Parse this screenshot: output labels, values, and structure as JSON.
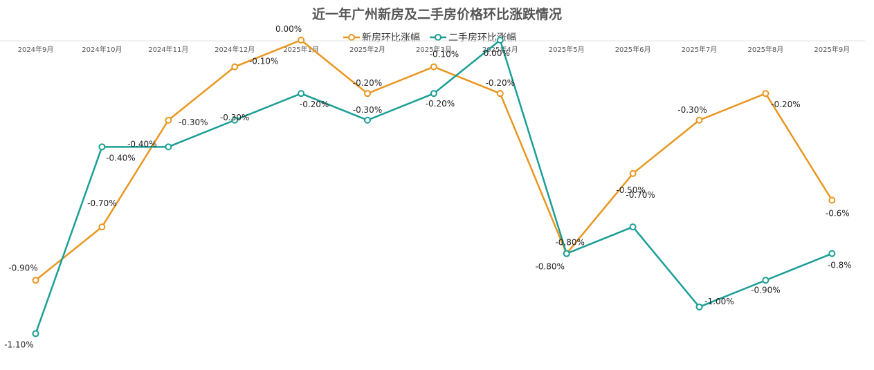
{
  "chart_data": {
    "type": "line",
    "title": "近一年广州新房及二手房价格环比涨跌情况",
    "xlabel": "",
    "ylabel": "",
    "categories": [
      "2024年9月",
      "2024年10月",
      "2024年11月",
      "2024年12月",
      "2025年1月",
      "2025年2月",
      "2025年3月",
      "2025年4月",
      "2025年5月",
      "2025年6月",
      "2025年7月",
      "2025年8月",
      "2025年9月"
    ],
    "ylim": [
      -1.2,
      0.0
    ],
    "grid": false,
    "legend": "top",
    "series": [
      {
        "name": "新房环比涨幅",
        "color": "#E8961E",
        "values": [
          -0.9,
          -0.7,
          -0.3,
          -0.1,
          0.0,
          -0.2,
          -0.1,
          -0.2,
          -0.8,
          -0.5,
          -0.3,
          -0.2,
          -0.6
        ],
        "labels": [
          "-0.90%",
          "-0.70%",
          "-0.30%",
          "-0.10%",
          "0.00%",
          "-0.20%",
          "-0.10%",
          "-0.20%",
          "-0.80%",
          "-0.50%",
          "-0.30%",
          "-0.20%",
          "-0.6%"
        ]
      },
      {
        "name": "二手房环比涨幅",
        "color": "#1A9E96",
        "values": [
          -1.1,
          -0.4,
          -0.4,
          -0.3,
          -0.2,
          -0.3,
          -0.2,
          0.0,
          -0.8,
          -0.7,
          -1.0,
          -0.9,
          -0.8
        ],
        "labels": [
          "-1.10%",
          "-0.40%",
          "-0.40%",
          "-0.30%",
          "-0.20%",
          "-0.30%",
          "-0.20%",
          "0.00%",
          "-0.80%",
          "-0.70%",
          "-1.00%",
          "-0.90%",
          "-0.8%"
        ]
      }
    ]
  }
}
